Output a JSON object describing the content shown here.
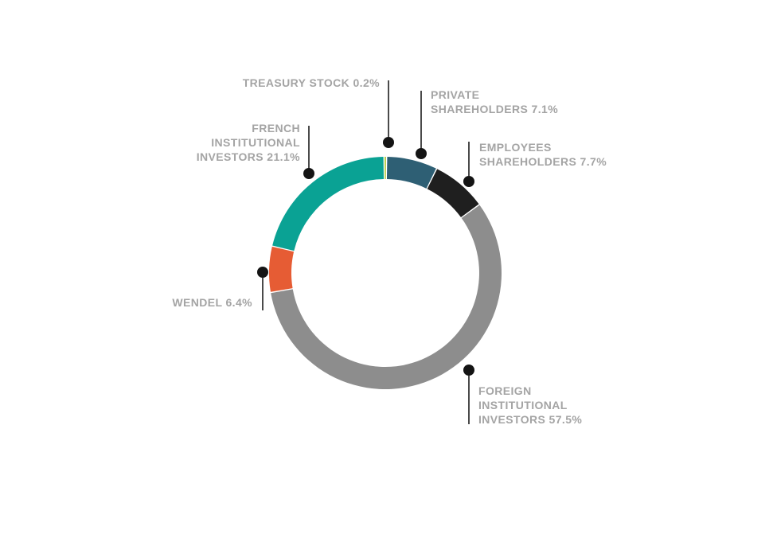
{
  "page": {
    "background": "#ffffff"
  },
  "chart_data": {
    "type": "pie",
    "variant": "donut",
    "unit": "%",
    "start_position": "top",
    "order": "clockwise",
    "segments": [
      {
        "label": "TREASURY STOCK",
        "value": 0.2,
        "color": "#b2c734"
      },
      {
        "label": "PRIVATE SHAREHOLDERS",
        "value": 7.1,
        "color": "#2e5f74"
      },
      {
        "label": "EMPLOYEES SHAREHOLDERS",
        "value": 7.7,
        "color": "#1f1f1f"
      },
      {
        "label": "FOREIGN INSTITUTIONAL INVESTORS",
        "value": 57.5,
        "color": "#8d8d8d"
      },
      {
        "label": "WENDEL",
        "value": 6.4,
        "color": "#e65c34"
      },
      {
        "label": "FRENCH INSTITUTIONAL INVESTORS",
        "value": 21.1,
        "color": "#0aa294"
      }
    ]
  },
  "callouts": {
    "treasury": {
      "lines": [
        "TREASURY STOCK 0.2%"
      ]
    },
    "private": {
      "lines": [
        "PRIVATE",
        "SHAREHOLDERS 7.1%"
      ]
    },
    "employees": {
      "lines": [
        "EMPLOYEES",
        "SHAREHOLDERS 7.7%"
      ]
    },
    "french": {
      "lines": [
        "FRENCH",
        "INSTITUTIONAL",
        "INVESTORS 21.1%"
      ]
    },
    "wendel": {
      "lines": [
        "WENDEL 6.4%"
      ]
    },
    "foreign": {
      "lines": [
        "FOREIGN",
        "INSTITUTIONAL",
        "INVESTORS 57.5%"
      ]
    }
  },
  "style": {
    "label_color": "#a4a4a4",
    "leader_line_color": "#4a4a4a",
    "dot_color": "#141414"
  }
}
